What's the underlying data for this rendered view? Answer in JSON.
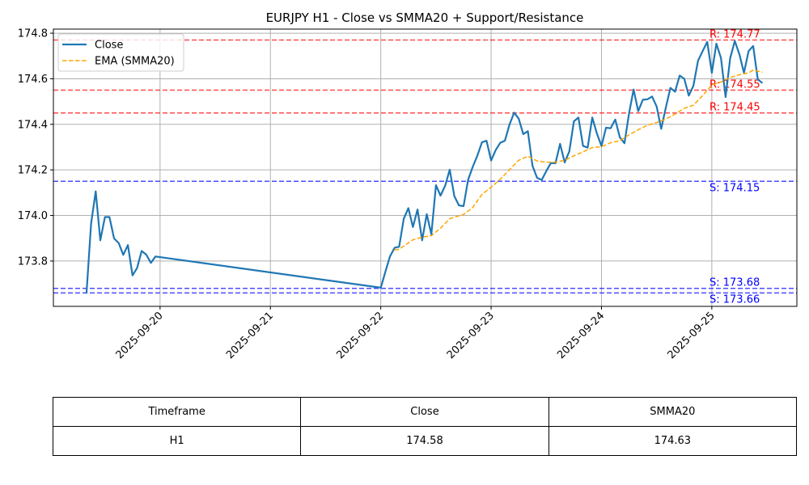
{
  "chart_data": {
    "type": "line",
    "title": "EURJPY H1 - Close vs SMMA20 + Support/Resistance",
    "xlabel": "",
    "ylabel": "",
    "x_unit": "hours since 2025-09-20 00:00",
    "xlim": [
      -23.2,
      138.5
    ],
    "ylim": [
      173.601,
      174.818
    ],
    "grid": true,
    "legend_placement": "top-left",
    "x_ticks": [
      {
        "value": 0,
        "label": "2025-09-20"
      },
      {
        "value": 24,
        "label": "2025-09-21"
      },
      {
        "value": 48,
        "label": "2025-09-22"
      },
      {
        "value": 72,
        "label": "2025-09-23"
      },
      {
        "value": 96,
        "label": "2025-09-24"
      },
      {
        "value": 120,
        "label": "2025-09-25"
      }
    ],
    "y_ticks": [
      {
        "value": 173.8,
        "label": "173.8"
      },
      {
        "value": 174.0,
        "label": "174.0"
      },
      {
        "value": 174.2,
        "label": "174.2"
      },
      {
        "value": 174.4,
        "label": "174.4"
      },
      {
        "value": 174.6,
        "label": "174.6"
      },
      {
        "value": 174.8,
        "label": "174.8"
      }
    ],
    "series": [
      {
        "name": "Close",
        "color": "#1f77b4",
        "style": "solid",
        "x": [
          -16,
          -15,
          -14,
          -13,
          -12,
          -11,
          -10,
          -9,
          -8,
          -7,
          -6,
          -5,
          -4,
          -3,
          -2,
          -1,
          48,
          49,
          50,
          51,
          52,
          53,
          54,
          55,
          56,
          57,
          58,
          59,
          60,
          61,
          62,
          63,
          64,
          65,
          66,
          67,
          68,
          69,
          70,
          71,
          72,
          73,
          74,
          75,
          76,
          77,
          78,
          79,
          80,
          81,
          82,
          83,
          84,
          85,
          86,
          87,
          88,
          89,
          90,
          91,
          92,
          93,
          94,
          95,
          96,
          97,
          98,
          99,
          100,
          101,
          102,
          103,
          104,
          105,
          106,
          107,
          108,
          109,
          110,
          111,
          112,
          113,
          114,
          115,
          116,
          117,
          118,
          119,
          120,
          121,
          122,
          123,
          124,
          125,
          126,
          127,
          128,
          129,
          130,
          131
        ],
        "values": [
          173.657,
          173.964,
          174.106,
          173.891,
          173.993,
          173.993,
          173.899,
          173.879,
          173.827,
          173.87,
          173.737,
          173.769,
          173.844,
          173.828,
          173.792,
          173.82,
          173.683,
          173.752,
          173.82,
          173.858,
          173.863,
          173.986,
          174.032,
          173.949,
          174.026,
          173.891,
          174.006,
          173.917,
          174.133,
          174.087,
          174.13,
          174.201,
          174.085,
          174.044,
          174.041,
          174.156,
          174.213,
          174.262,
          174.321,
          174.328,
          174.241,
          174.287,
          174.319,
          174.328,
          174.399,
          174.451,
          174.425,
          174.357,
          174.37,
          174.218,
          174.165,
          174.156,
          174.195,
          174.23,
          174.229,
          174.314,
          174.233,
          174.281,
          174.413,
          174.43,
          174.305,
          174.298,
          174.43,
          174.36,
          174.305,
          174.385,
          174.383,
          174.421,
          174.343,
          174.317,
          174.449,
          174.553,
          174.458,
          174.508,
          174.51,
          174.522,
          174.478,
          174.38,
          174.473,
          174.56,
          174.543,
          174.614,
          174.6,
          174.526,
          174.569,
          174.679,
          174.721,
          174.762,
          174.626,
          174.754,
          174.691,
          174.52,
          174.691,
          174.766,
          174.707,
          174.626,
          174.721,
          174.744,
          174.597,
          174.581
        ]
      },
      {
        "name": "EMA (SMMA20)",
        "color": "#ffa500",
        "style": "dashed",
        "x": [
          51,
          52,
          55,
          57,
          59,
          61,
          63,
          66,
          68,
          70,
          72,
          74,
          76,
          78,
          80,
          82,
          84,
          86,
          88,
          90,
          92,
          94,
          96,
          98,
          100,
          102,
          104,
          106,
          108,
          110,
          112,
          114,
          116,
          118,
          120,
          122,
          124,
          126,
          128,
          129,
          131
        ],
        "values": [
          173.848,
          173.852,
          173.893,
          173.905,
          173.911,
          173.944,
          173.986,
          174.004,
          174.035,
          174.092,
          174.124,
          174.159,
          174.201,
          174.242,
          174.26,
          174.239,
          174.234,
          174.234,
          174.242,
          174.262,
          174.279,
          174.298,
          174.302,
          174.319,
          174.328,
          174.354,
          174.376,
          174.396,
          174.408,
          174.423,
          174.445,
          174.47,
          174.484,
          174.526,
          174.573,
          174.586,
          174.606,
          174.618,
          174.626,
          174.638,
          174.629
        ]
      }
    ],
    "levels": [
      {
        "type": "resistance",
        "value": 174.77,
        "label": "R: 174.77",
        "color": "#ff0000"
      },
      {
        "type": "resistance",
        "value": 174.55,
        "label": "R: 174.55",
        "color": "#ff0000"
      },
      {
        "type": "resistance",
        "value": 174.45,
        "label": "R: 174.45",
        "color": "#ff0000"
      },
      {
        "type": "support",
        "value": 174.15,
        "label": "S: 174.15",
        "color": "#0000ff"
      },
      {
        "type": "support",
        "value": 173.68,
        "label": "S: 173.68",
        "color": "#0000ff"
      },
      {
        "type": "support",
        "value": 173.66,
        "label": "S: 173.66",
        "color": "#0000ff"
      }
    ]
  },
  "table": {
    "headers": [
      "Timeframe",
      "Close",
      "SMMA20"
    ],
    "rows": [
      [
        "H1",
        "174.58",
        "174.63"
      ]
    ]
  }
}
